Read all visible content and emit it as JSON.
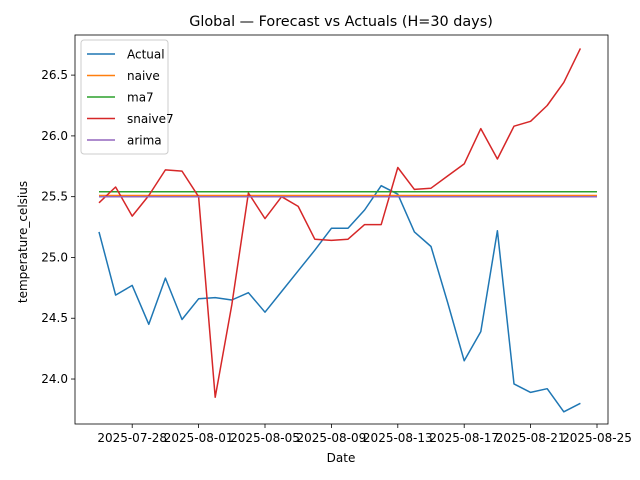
{
  "chart_data": {
    "type": "line",
    "title": "Global — Forecast vs Actuals (H=30 days)",
    "xlabel": "Date",
    "ylabel": "temperature_celsius",
    "x": [
      "2025-07-26",
      "2025-07-27",
      "2025-07-28",
      "2025-07-29",
      "2025-07-30",
      "2025-07-31",
      "2025-08-01",
      "2025-08-02",
      "2025-08-03",
      "2025-08-04",
      "2025-08-05",
      "2025-08-06",
      "2025-08-07",
      "2025-08-08",
      "2025-08-09",
      "2025-08-10",
      "2025-08-11",
      "2025-08-12",
      "2025-08-13",
      "2025-08-14",
      "2025-08-15",
      "2025-08-16",
      "2025-08-17",
      "2025-08-18",
      "2025-08-19",
      "2025-08-20",
      "2025-08-21",
      "2025-08-22",
      "2025-08-23",
      "2025-08-24",
      "2025-08-25"
    ],
    "xticks": [
      "2025-07-28",
      "2025-08-01",
      "2025-08-05",
      "2025-08-09",
      "2025-08-13",
      "2025-08-17",
      "2025-08-21",
      "2025-08-25"
    ],
    "ylim": [
      23.63,
      26.83
    ],
    "yticks": [
      24.0,
      24.5,
      25.0,
      25.5,
      26.0,
      26.5
    ],
    "grid": false,
    "legend_position": "top-left",
    "series": [
      {
        "name": "Actual",
        "color": "#1f77b4",
        "values": [
          25.21,
          24.69,
          24.77,
          24.45,
          24.83,
          24.49,
          24.66,
          24.67,
          24.65,
          24.71,
          24.55,
          24.72,
          24.89,
          25.06,
          25.24,
          25.24,
          25.39,
          25.59,
          25.52,
          25.21,
          25.09,
          24.63,
          24.15,
          24.39,
          25.22,
          23.96,
          23.89,
          23.92,
          23.73,
          23.8,
          null
        ]
      },
      {
        "name": "naive",
        "color": "#ff7f0e",
        "values": [
          25.51,
          25.51,
          25.51,
          25.51,
          25.51,
          25.51,
          25.51,
          25.51,
          25.51,
          25.51,
          25.51,
          25.51,
          25.51,
          25.51,
          25.51,
          25.51,
          25.51,
          25.51,
          25.51,
          25.51,
          25.51,
          25.51,
          25.51,
          25.51,
          25.51,
          25.51,
          25.51,
          25.51,
          25.51,
          25.51,
          25.51
        ]
      },
      {
        "name": "ma7",
        "color": "#2ca02c",
        "values": [
          25.54,
          25.54,
          25.54,
          25.54,
          25.54,
          25.54,
          25.54,
          25.54,
          25.54,
          25.54,
          25.54,
          25.54,
          25.54,
          25.54,
          25.54,
          25.54,
          25.54,
          25.54,
          25.54,
          25.54,
          25.54,
          25.54,
          25.54,
          25.54,
          25.54,
          25.54,
          25.54,
          25.54,
          25.54,
          25.54,
          25.54
        ]
      },
      {
        "name": "snaive7",
        "color": "#d62728",
        "values": [
          25.45,
          25.58,
          25.34,
          25.51,
          25.72,
          25.71,
          25.5,
          23.85,
          24.61,
          25.53,
          25.32,
          25.5,
          25.42,
          25.15,
          25.14,
          25.15,
          25.27,
          25.27,
          25.74,
          25.56,
          25.57,
          25.67,
          25.77,
          26.06,
          25.81,
          26.08,
          26.12,
          26.25,
          26.44,
          26.72,
          null
        ]
      },
      {
        "name": "arima",
        "color": "#9467bd",
        "values": [
          25.5,
          25.5,
          25.5,
          25.5,
          25.5,
          25.5,
          25.5,
          25.5,
          25.5,
          25.5,
          25.5,
          25.5,
          25.5,
          25.5,
          25.5,
          25.5,
          25.5,
          25.5,
          25.5,
          25.5,
          25.5,
          25.5,
          25.5,
          25.5,
          25.5,
          25.5,
          25.5,
          25.5,
          25.5,
          25.5,
          25.5
        ]
      }
    ]
  }
}
